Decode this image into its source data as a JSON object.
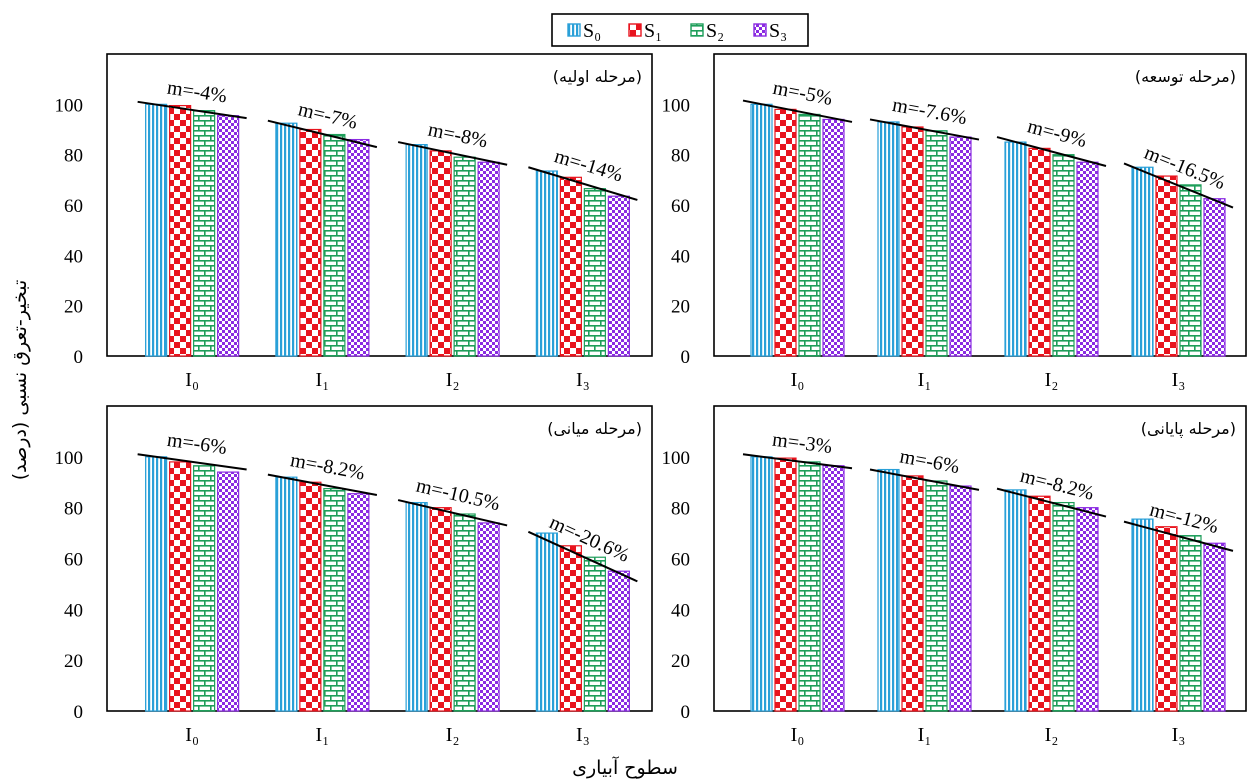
{
  "chart_data": {
    "type": "bar",
    "ylabel": "تبخیر-تعرق نسبی (درصد)",
    "xlabel": "سطوح آبیاری",
    "ylim": [
      0,
      120
    ],
    "yticks": [
      0,
      20,
      40,
      60,
      80,
      100
    ],
    "categories": [
      "I₀",
      "I₁",
      "I₂",
      "I₃"
    ],
    "legend": {
      "position": "top-center",
      "items": [
        {
          "label": "S₀",
          "color": "#2aa0d8",
          "pattern": "vertical-lines"
        },
        {
          "label": "S₁",
          "color": "#e8141e",
          "pattern": "checker"
        },
        {
          "label": "S₂",
          "color": "#1e9e5a",
          "pattern": "brick"
        },
        {
          "label": "S₃",
          "color": "#8a2be2",
          "pattern": "small-checker"
        }
      ]
    },
    "panels": [
      {
        "stage": "(مرحله اولیه)",
        "series": [
          {
            "name": "S₀",
            "values": [
              100,
              92.5,
              84,
              73.5
            ]
          },
          {
            "name": "S₁",
            "values": [
              99.5,
              90,
              81.5,
              71
            ]
          },
          {
            "name": "S₂",
            "values": [
              97.5,
              88,
              79,
              66.5
            ]
          },
          {
            "name": "S₃",
            "values": [
              95.5,
              86,
              77,
              63.5
            ]
          }
        ],
        "annotations": [
          "m=-4%",
          "m=-7%",
          "m=-8%",
          "m=-14%"
        ],
        "trendlines": [
          [
            101,
            94.5
          ],
          [
            93.5,
            83
          ],
          [
            85,
            76
          ],
          [
            75,
            62
          ]
        ]
      },
      {
        "stage": "(مرحله توسعه)",
        "series": [
          {
            "name": "S₀",
            "values": [
              100,
              93,
              85,
              75
            ]
          },
          {
            "name": "S₁",
            "values": [
              98,
              91,
              82.5,
              71.5
            ]
          },
          {
            "name": "S₂",
            "values": [
              96,
              89.5,
              80,
              68
            ]
          },
          {
            "name": "S₃",
            "values": [
              94,
              87,
              77,
              62.5
            ]
          }
        ],
        "annotations": [
          "m=-5%",
          "m=-7.6%",
          "m=-9%",
          "m=-16.5%"
        ],
        "trendlines": [
          [
            101.5,
            93
          ],
          [
            94,
            86
          ],
          [
            87,
            75.5
          ],
          [
            76.5,
            59
          ]
        ]
      },
      {
        "stage": "(مرحله میانی)",
        "series": [
          {
            "name": "S₀",
            "values": [
              100,
              92,
              82,
              70
            ]
          },
          {
            "name": "S₁",
            "values": [
              98,
              90,
              80,
              65
            ]
          },
          {
            "name": "S₂",
            "values": [
              96.5,
              87.5,
              77.5,
              60.5
            ]
          },
          {
            "name": "S₃",
            "values": [
              94,
              85.5,
              74,
              55
            ]
          }
        ],
        "annotations": [
          "m=-6%",
          "m=-8.2%",
          "m=-10.5%",
          "m=-20.6%"
        ],
        "trendlines": [
          [
            101,
            95
          ],
          [
            93,
            85
          ],
          [
            83,
            73
          ],
          [
            70.5,
            51
          ]
        ]
      },
      {
        "stage": "(مرحله پایانی)",
        "series": [
          {
            "name": "S₀",
            "values": [
              100,
              95,
              87,
              75.5
            ]
          },
          {
            "name": "S₁",
            "values": [
              99.5,
              92.5,
              84.5,
              72.5
            ]
          },
          {
            "name": "S₂",
            "values": [
              98,
              90.5,
              82,
              69
            ]
          },
          {
            "name": "S₃",
            "values": [
              96.5,
              88.5,
              80,
              66
            ]
          }
        ],
        "annotations": [
          "m=-3%",
          "m=-6%",
          "m=-8.2%",
          "m=-12%"
        ],
        "trendlines": [
          [
            101,
            95.5
          ],
          [
            95,
            87
          ],
          [
            87.5,
            76.5
          ],
          [
            74.5,
            63
          ]
        ]
      }
    ]
  }
}
